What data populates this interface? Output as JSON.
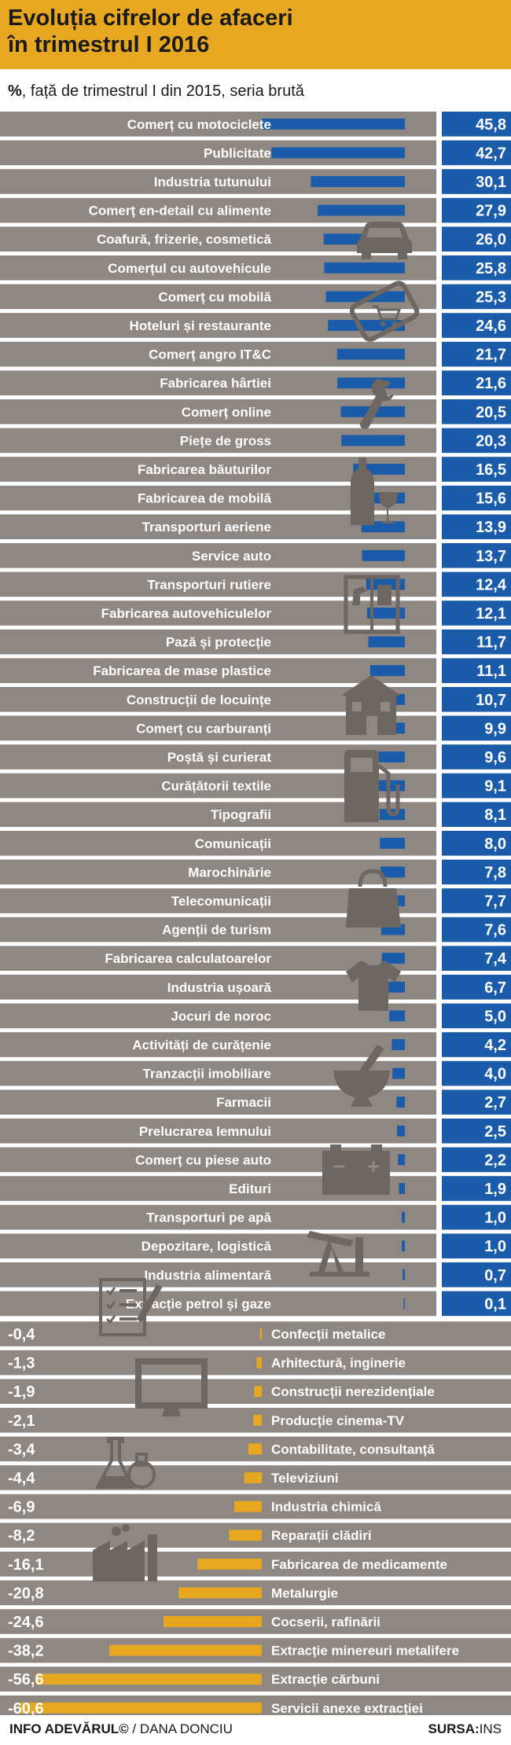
{
  "header": {
    "title": "Evoluția cifrelor de afaceri\nîn trimestrul I 2016",
    "subtitle_unit": "%",
    "subtitle_rest": ", față de trimestrul I din 2015, seria brută"
  },
  "footer": {
    "credit_brand": "INFO ADEVĂRUL©",
    "credit_author": " / DANA DONCIU",
    "source_label": "SURSA:",
    "source_value": "INS"
  },
  "colors": {
    "header": "#e8a721",
    "row_bg": "#8f8781",
    "value_box": "#1a5caa",
    "positive_bar": "#1a5caa",
    "negative_bar": "#e8a721",
    "icon": "#6d6661"
  },
  "icons": [
    "car-icon",
    "phone-cart-icon",
    "wrench-icon",
    "wine-icon",
    "wardrobe-icon",
    "house-icon",
    "fuel-pump-icon",
    "handbag-icon",
    "tshirt-icon",
    "mortar-pestle-icon",
    "battery-icon",
    "oil-pump-icon",
    "checklist-icon",
    "monitor-icon",
    "flask-icon",
    "factory-icon"
  ],
  "chart_data": {
    "type": "bar",
    "orientation": "horizontal",
    "unit": "%",
    "value_format": "comma-decimal",
    "positive": {
      "categories": [
        "Comerț cu motociclete",
        "Publicitate",
        "Industria tutunului",
        "Comerț en-detail cu alimente",
        "Coafură, frizerie, cosmetică",
        "Comerțul cu autovehicule",
        "Comerț cu mobilă",
        "Hoteluri și restaurante",
        "Comerț angro IT&C",
        "Fabricarea hârtiei",
        "Comerț online",
        "Piețe de gross",
        "Fabricarea băuturilor",
        "Fabricarea de mobilă",
        "Transporturi aeriene",
        "Service auto",
        "Transporturi rutiere",
        "Fabricarea autovehiculelor",
        "Pază și protecție",
        "Fabricarea de mase plastice",
        "Construcții de locuințe",
        "Comerț cu carburanți",
        "Poștă și curierat",
        "Curățătorii textile",
        "Tipografii",
        "Comunicații",
        "Marochinărie",
        "Telecomunicații",
        "Agenții de turism",
        "Fabricarea calculatoarelor",
        "Industria ușoară",
        "Jocuri de noroc",
        "Activități de curățenie",
        "Tranzacții imobiliare",
        "Farmacii",
        "Prelucrarea lemnului",
        "Comerț cu piese auto",
        "Edituri",
        "Transporturi pe apă",
        "Depozitare, logistică",
        "Industria alimentară",
        "Extracție petrol și gaze"
      ],
      "values": [
        45.8,
        42.7,
        30.1,
        27.9,
        26.0,
        25.8,
        25.3,
        24.6,
        21.7,
        21.6,
        20.5,
        20.3,
        16.5,
        15.6,
        13.9,
        13.7,
        12.4,
        12.1,
        11.7,
        11.1,
        10.7,
        9.9,
        9.6,
        9.1,
        8.1,
        8.0,
        7.8,
        7.7,
        7.6,
        7.4,
        6.7,
        5.0,
        4.2,
        4.0,
        2.7,
        2.5,
        2.2,
        1.9,
        1.0,
        1.0,
        0.7,
        0.1
      ]
    },
    "negative": {
      "categories": [
        "Confecții metalice",
        "Arhitectură, inginerie",
        "Construcții nerezidențiale",
        "Producție cinema-TV",
        "Contabilitate, consultanță",
        "Televiziuni",
        "Industria chimică",
        "Reparații clădiri",
        "Fabricarea de medicamente",
        "Metalurgie",
        "Cocserii, rafinării",
        "Extracție minereuri metalifere",
        "Extracție cărbuni",
        "Servicii anexe extracției"
      ],
      "values": [
        -0.4,
        -1.3,
        -1.9,
        -2.1,
        -3.4,
        -4.4,
        -6.9,
        -8.2,
        -16.1,
        -20.8,
        -24.6,
        -38.2,
        -56.6,
        -60.6
      ]
    },
    "legend": "none",
    "grid": false
  }
}
